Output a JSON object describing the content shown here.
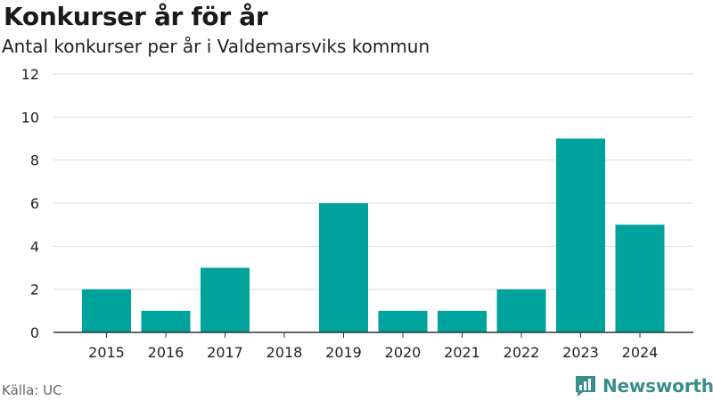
{
  "header": {
    "title": "Konkurser år för år",
    "subtitle": "Antal konkurser per år i Valdemarsviks kommun"
  },
  "footer": {
    "source": "Källa: UC",
    "brand": "Newsworthy"
  },
  "colors": {
    "bar": "#00a39b",
    "grid": "#dddddd",
    "axis": "#333333",
    "brand": "#3a8f8a"
  },
  "chart_data": {
    "type": "bar",
    "title": "Konkurser år för år",
    "subtitle": "Antal konkurser per år i Valdemarsviks kommun",
    "xlabel": "",
    "ylabel": "",
    "categories": [
      "2015",
      "2016",
      "2017",
      "2018",
      "2019",
      "2020",
      "2021",
      "2022",
      "2023",
      "2024"
    ],
    "values": [
      2,
      1,
      3,
      0,
      6,
      1,
      1,
      2,
      9,
      5
    ],
    "ylim": [
      0,
      12
    ],
    "yticks": [
      0,
      2,
      4,
      6,
      8,
      10,
      12
    ],
    "grid": true
  }
}
